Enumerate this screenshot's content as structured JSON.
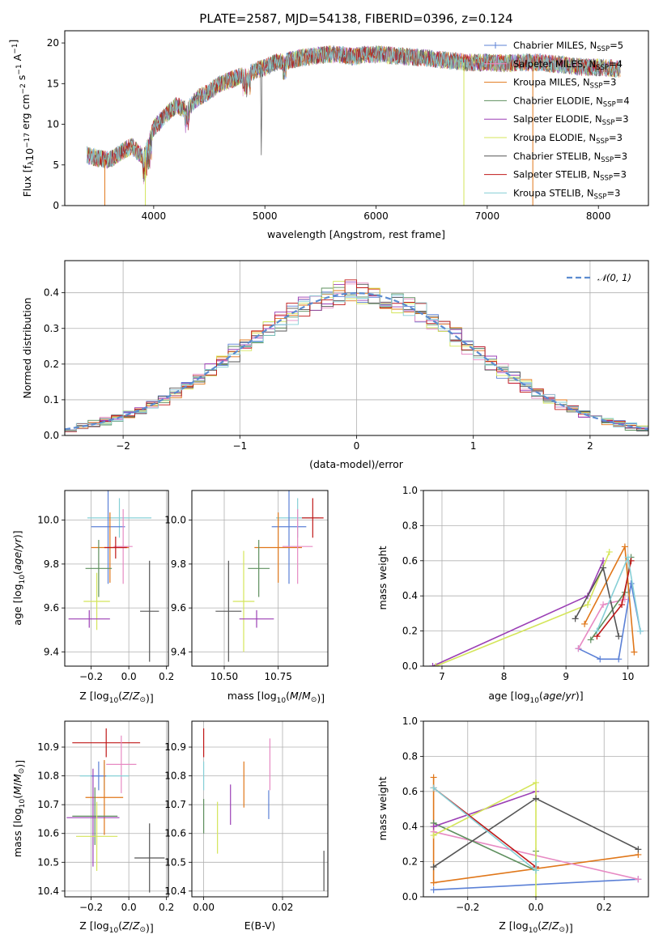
{
  "colors": {
    "chabrier_miles": "#5b80d6",
    "salpeter_miles": "#e78ac3",
    "kroupa_miles": "#e0771a",
    "chabrier_elodie": "#5e8f5e",
    "salpeter_elodie": "#9b3fb5",
    "kroupa_elodie": "#d4e55a",
    "chabrier_stelib": "#555555",
    "salpeter_stelib": "#c01818",
    "kroupa_stelib": "#86cfd6",
    "normal": "#5b8bd0"
  },
  "chart_data": [
    {
      "id": "spectrum",
      "type": "line",
      "title": "PLATE=2587, MJD=54138, FIBERID=0396, z=0.124",
      "xlabel": "wavelength [Angstrom, rest frame]",
      "ylabel": "Flux [f_λ 10^-17 erg cm^-2 s^-1 A^-1]",
      "ylabel_parts": {
        "a": "Flux [f",
        "b": "λ",
        "c": "10",
        "d": "−17",
        "e": " erg cm",
        "f": "−2",
        "g": " s",
        "h": "−1",
        "i": " A",
        "j": "−1",
        "k": "]"
      },
      "xlim": [
        3200,
        8450
      ],
      "ylim": [
        0,
        21.5
      ],
      "xticks": [
        4000,
        5000,
        6000,
        7000,
        8000
      ],
      "yticks": [
        0,
        5,
        10,
        15,
        20
      ],
      "envelope": {
        "x": [
          3400,
          3500,
          3600,
          3700,
          3800,
          3900,
          4000,
          4100,
          4200,
          4300,
          4400,
          4500,
          4600,
          4700,
          4800,
          4900,
          5000,
          5100,
          5200,
          5300,
          5400,
          5500,
          5600,
          5700,
          5800,
          5900,
          6000,
          6100,
          6200,
          6300,
          6400,
          6500,
          6600,
          6700,
          6800,
          6900,
          7000,
          7100,
          7200,
          7300,
          7400,
          7500,
          7600,
          7700,
          7800,
          7900,
          8000,
          8100,
          8200
        ],
        "y": [
          6.2,
          5.8,
          5.6,
          6.5,
          7.3,
          6.0,
          9.5,
          11.0,
          12.3,
          11.8,
          13.3,
          14.0,
          15.0,
          15.5,
          16.0,
          16.5,
          17.0,
          17.6,
          17.8,
          18.1,
          18.3,
          18.5,
          18.6,
          18.5,
          18.3,
          18.6,
          18.6,
          18.5,
          18.4,
          18.3,
          18.2,
          18.1,
          17.9,
          17.8,
          17.6,
          17.6,
          17.6,
          17.5,
          17.5,
          17.6,
          17.6,
          17.6,
          17.4,
          17.3,
          17.1,
          17.0,
          17.0,
          16.9,
          16.8
        ]
      },
      "dips": [
        {
          "x": 3560,
          "y": 0
        },
        {
          "x": 3925,
          "y": 0
        },
        {
          "x": 6790,
          "y": 0
        },
        {
          "x": 7410,
          "y": 0
        }
      ],
      "legend": [
        {
          "key": "chabrier_miles",
          "label": "Chabrier MILES, N",
          "sub": "SSP",
          "suffix": "=5",
          "marker": "+"
        },
        {
          "key": "salpeter_miles",
          "label": "Salpeter MILES, N",
          "sub": "SSP",
          "suffix": "=4",
          "marker": "+"
        },
        {
          "key": "kroupa_miles",
          "label": "Kroupa MILES, N",
          "sub": "SSP",
          "suffix": "=3",
          "marker": ""
        },
        {
          "key": "chabrier_elodie",
          "label": "Chabrier ELODIE, N",
          "sub": "SSP",
          "suffix": "=4",
          "marker": ""
        },
        {
          "key": "salpeter_elodie",
          "label": "Salpeter ELODIE, N",
          "sub": "SSP",
          "suffix": "=3",
          "marker": ""
        },
        {
          "key": "kroupa_elodie",
          "label": "Kroupa ELODIE, N",
          "sub": "SSP",
          "suffix": "=3",
          "marker": ""
        },
        {
          "key": "chabrier_stelib",
          "label": "Chabrier STELIB, N",
          "sub": "SSP",
          "suffix": "=3",
          "marker": ""
        },
        {
          "key": "salpeter_stelib",
          "label": "Salpeter STELIB, N",
          "sub": "SSP",
          "suffix": "=3",
          "marker": ""
        },
        {
          "key": "kroupa_stelib",
          "label": "Kroupa STELIB, N",
          "sub": "SSP",
          "suffix": "=3",
          "marker": ""
        }
      ],
      "legend_placement": "upper-right"
    },
    {
      "id": "residuals",
      "type": "line",
      "xlabel": "(data-model)/error",
      "ylabel": "Normed distribution",
      "xlim": [
        -2.5,
        2.5
      ],
      "ylim": [
        0,
        0.49
      ],
      "xticks": [
        -2,
        -1,
        0,
        1,
        2
      ],
      "xtick_labels": [
        "−2",
        "−1",
        "0",
        "1",
        "2"
      ],
      "yticks": [
        0,
        0.1,
        0.2,
        0.3,
        0.4
      ],
      "ytick_labels": [
        "0.0",
        "0.1",
        "0.2",
        "0.3",
        "0.4"
      ],
      "grid": true,
      "bin_width": 0.1,
      "normal_label": "𝒩(0, 1)",
      "legend_placement": "upper-right"
    },
    {
      "id": "age_vs_Z",
      "type": "scatter",
      "xlabel": "Z [log10(Z/Z⊙)]",
      "ylabel": "age [log10(age/yr)]",
      "xlim": [
        -0.34,
        0.21
      ],
      "ylim": [
        9.335,
        10.135
      ],
      "xticks": [
        -0.2,
        0,
        0.2
      ],
      "xtick_labels": [
        "−0.2",
        "0.0",
        "0.2"
      ],
      "yticks": [
        9.4,
        9.6,
        9.8,
        10.0
      ],
      "ytick_labels": [
        "9.4",
        "9.6",
        "9.8",
        "10.0"
      ],
      "grid": true,
      "points": [
        {
          "key": "kroupa_stelib",
          "x": -0.05,
          "xerr": 0.17,
          "y": 10.01,
          "yerr": 0.09
        },
        {
          "key": "chabrier_miles",
          "x": -0.11,
          "xerr": 0.09,
          "y": 9.97,
          "yerr": 0.26
        },
        {
          "key": "kroupa_miles",
          "x": -0.1,
          "xerr": 0.1,
          "y": 9.875,
          "yerr": 0.16
        },
        {
          "key": "salpeter_miles",
          "x": -0.03,
          "xerr": 0.05,
          "y": 9.88,
          "yerr": 0.17
        },
        {
          "key": "chabrier_elodie",
          "x": -0.16,
          "xerr": 0.07,
          "y": 9.78,
          "yerr": 0.13
        },
        {
          "key": "kroupa_elodie",
          "x": -0.17,
          "xerr": 0.07,
          "y": 9.63,
          "yerr": 0.13
        },
        {
          "key": "salpeter_elodie",
          "x": -0.21,
          "xerr": 0.11,
          "y": 9.55,
          "yerr": 0.04
        },
        {
          "key": "chabrier_stelib",
          "x": 0.11,
          "xerr": 0.05,
          "y": 9.585,
          "yerr": 0.23
        },
        {
          "key": "salpeter_stelib",
          "x": -0.07,
          "xerr": 0.06,
          "y": 9.875,
          "yerr": 0.05
        }
      ]
    },
    {
      "id": "age_vs_mass",
      "type": "scatter",
      "xlabel": "mass [log10(M/M⊙)]",
      "xlim": [
        10.35,
        10.98
      ],
      "ylim": [
        9.335,
        10.135
      ],
      "xticks": [
        10.5,
        10.75
      ],
      "xtick_labels": [
        "10.50",
        "10.75"
      ],
      "yticks": [
        9.4,
        9.6,
        9.8,
        10.0
      ],
      "ytick_labels": [
        "9.4",
        "9.6",
        "9.8",
        "10.0"
      ],
      "grid": true,
      "points": [
        {
          "key": "kroupa_stelib",
          "x": 10.84,
          "xerr": 0.1,
          "y": 10.01,
          "yerr": 0.09
        },
        {
          "key": "chabrier_miles",
          "x": 10.8,
          "xerr": 0.08,
          "y": 9.97,
          "yerr": 0.26
        },
        {
          "key": "kroupa_miles",
          "x": 10.75,
          "xerr": 0.11,
          "y": 9.875,
          "yerr": 0.16
        },
        {
          "key": "salpeter_miles",
          "x": 10.84,
          "xerr": 0.07,
          "y": 9.88,
          "yerr": 0.17
        },
        {
          "key": "chabrier_elodie",
          "x": 10.66,
          "xerr": 0.05,
          "y": 9.78,
          "yerr": 0.13
        },
        {
          "key": "kroupa_elodie",
          "x": 10.59,
          "xerr": 0.05,
          "y": 9.63,
          "yerr": 0.23
        },
        {
          "key": "salpeter_elodie",
          "x": 10.65,
          "xerr": 0.08,
          "y": 9.55,
          "yerr": 0.04
        },
        {
          "key": "chabrier_stelib",
          "x": 10.52,
          "xerr": 0.06,
          "y": 9.585,
          "yerr": 0.23
        },
        {
          "key": "salpeter_stelib",
          "x": 10.91,
          "xerr": 0.05,
          "y": 10.01,
          "yerr": 0.09
        }
      ]
    },
    {
      "id": "weight_vs_age",
      "type": "line",
      "xlabel": "age [log10(age/yr)]",
      "ylabel": "mass weight",
      "xlim": [
        6.7,
        10.33
      ],
      "ylim": [
        0,
        1
      ],
      "xticks": [
        7,
        8,
        9,
        10
      ],
      "xtick_labels": [
        "7",
        "8",
        "9",
        "10"
      ],
      "yticks": [
        0,
        0.2,
        0.4,
        0.6,
        0.8,
        1.0
      ],
      "ytick_labels": [
        "0.0",
        "0.2",
        "0.4",
        "0.6",
        "0.8",
        "1.0"
      ],
      "grid": true,
      "series": [
        {
          "key": "chabrier_miles",
          "x": [
            9.2,
            9.55,
            9.85,
            10.05,
            10.2
          ],
          "y": [
            0.1,
            0.04,
            0.04,
            0.47,
            0.2
          ]
        },
        {
          "key": "salpeter_miles",
          "x": [
            9.2,
            9.6,
            9.95
          ],
          "y": [
            0.1,
            0.35,
            0.38
          ]
        },
        {
          "key": "kroupa_miles",
          "x": [
            9.3,
            9.95,
            10.1
          ],
          "y": [
            0.24,
            0.68,
            0.08
          ]
        },
        {
          "key": "chabrier_elodie",
          "x": [
            9.4,
            9.95,
            10.05
          ],
          "y": [
            0.15,
            0.42,
            0.62
          ]
        },
        {
          "key": "salpeter_elodie",
          "x": [
            6.85,
            9.35,
            9.6
          ],
          "y": [
            0.0,
            0.4,
            0.6
          ]
        },
        {
          "key": "kroupa_elodie",
          "x": [
            6.9,
            9.35,
            9.7
          ],
          "y": [
            0.0,
            0.35,
            0.65
          ]
        },
        {
          "key": "chabrier_stelib",
          "x": [
            9.15,
            9.6,
            9.85
          ],
          "y": [
            0.27,
            0.56,
            0.17
          ]
        },
        {
          "key": "salpeter_stelib",
          "x": [
            9.5,
            9.9,
            10.05
          ],
          "y": [
            0.17,
            0.35,
            0.6
          ]
        },
        {
          "key": "kroupa_stelib",
          "x": [
            9.5,
            10.0,
            10.2
          ],
          "y": [
            0.2,
            0.62,
            0.2
          ]
        }
      ]
    },
    {
      "id": "mass_vs_Z",
      "type": "scatter",
      "xlabel": "Z [log10(Z/Z⊙)]",
      "ylabel": "mass [log10(M/M⊙)]",
      "xlim": [
        -0.34,
        0.21
      ],
      "ylim": [
        10.38,
        10.99
      ],
      "xticks": [
        -0.2,
        0,
        0.2
      ],
      "xtick_labels": [
        "−0.2",
        "0.0",
        "0.2"
      ],
      "yticks": [
        10.4,
        10.5,
        10.6,
        10.7,
        10.8,
        10.9
      ],
      "ytick_labels": [
        "10.4",
        "10.5",
        "10.6",
        "10.7",
        "10.8",
        "10.9"
      ],
      "grid": true,
      "points": [
        {
          "key": "salpeter_stelib",
          "x": -0.12,
          "xerr": 0.18,
          "y": 10.915,
          "yerr": 0.05
        },
        {
          "key": "salpeter_miles",
          "x": -0.04,
          "xerr": 0.08,
          "y": 10.84,
          "yerr": 0.1
        },
        {
          "key": "kroupa_stelib",
          "x": -0.13,
          "xerr": 0.13,
          "y": 10.8,
          "yerr": 0.05
        },
        {
          "key": "chabrier_miles",
          "x": -0.16,
          "xerr": 0.04,
          "y": 10.8,
          "yerr": 0.05
        },
        {
          "key": "kroupa_miles",
          "x": -0.13,
          "xerr": 0.1,
          "y": 10.725,
          "yerr": 0.13
        },
        {
          "key": "chabrier_elodie",
          "x": -0.18,
          "xerr": 0.12,
          "y": 10.66,
          "yerr": 0.1
        },
        {
          "key": "salpeter_elodie",
          "x": -0.19,
          "xerr": 0.14,
          "y": 10.655,
          "yerr": 0.17
        },
        {
          "key": "kroupa_elodie",
          "x": -0.17,
          "xerr": 0.11,
          "y": 10.59,
          "yerr": 0.12
        },
        {
          "key": "chabrier_stelib",
          "x": 0.11,
          "xerr": 0.08,
          "y": 10.515,
          "yerr": 0.12
        }
      ]
    },
    {
      "id": "mass_vs_ebv",
      "type": "scatter",
      "xlabel": "E(B-V)",
      "xlim": [
        -0.003,
        0.0315
      ],
      "ylim": [
        10.38,
        10.99
      ],
      "xticks": [
        0,
        0.02
      ],
      "xtick_labels": [
        "0.00",
        "0.02"
      ],
      "yticks": [
        10.4,
        10.5,
        10.6,
        10.7,
        10.8,
        10.9
      ],
      "ytick_labels": [
        "10.4",
        "10.5",
        "10.6",
        "10.7",
        "10.8",
        "10.9"
      ],
      "grid": true,
      "points": [
        {
          "key": "salpeter_stelib",
          "x": 0.0,
          "xerr": 0,
          "y": 10.915,
          "yerr": 0.05
        },
        {
          "key": "kroupa_stelib",
          "x": 0.0,
          "xerr": 0,
          "y": 10.8,
          "yerr": 0.05
        },
        {
          "key": "chabrier_elodie",
          "x": 0.0,
          "xerr": 0,
          "y": 10.66,
          "yerr": 0.06
        },
        {
          "key": "kroupa_elodie",
          "x": 0.0035,
          "xerr": 0,
          "y": 10.62,
          "yerr": 0.09
        },
        {
          "key": "salpeter_elodie",
          "x": 0.0068,
          "xerr": 0,
          "y": 10.7,
          "yerr": 0.07
        },
        {
          "key": "kroupa_miles",
          "x": 0.0102,
          "xerr": 0,
          "y": 10.77,
          "yerr": 0.08
        },
        {
          "key": "chabrier_miles",
          "x": 0.0165,
          "xerr": 0,
          "y": 10.7,
          "yerr": 0.05
        },
        {
          "key": "salpeter_miles",
          "x": 0.0168,
          "xerr": 0,
          "y": 10.84,
          "yerr": 0.09
        },
        {
          "key": "chabrier_stelib",
          "x": 0.0305,
          "xerr": 0,
          "y": 10.47,
          "yerr": 0.07
        }
      ]
    },
    {
      "id": "weight_vs_Z",
      "type": "line",
      "xlabel": "Z [log10(Z/Z⊙)]",
      "ylabel": "mass weight",
      "xlim": [
        -0.33,
        0.33
      ],
      "ylim": [
        0,
        1
      ],
      "xticks": [
        -0.2,
        0,
        0.2
      ],
      "xtick_labels": [
        "−0.2",
        "0.0",
        "0.2"
      ],
      "yticks": [
        0,
        0.2,
        0.4,
        0.6,
        0.8,
        1.0
      ],
      "ytick_labels": [
        "0.0",
        "0.2",
        "0.4",
        "0.6",
        "0.8",
        "1.0"
      ],
      "grid": true,
      "series": [
        {
          "key": "chabrier_miles",
          "x": [
            -0.3,
            0.3
          ],
          "y": [
            0.04,
            0.1
          ]
        },
        {
          "key": "kroupa_miles",
          "x": [
            -0.3,
            -0.3,
            0.3
          ],
          "y": [
            0.68,
            0.08,
            0.24
          ]
        },
        {
          "key": "salpeter_miles",
          "x": [
            -0.3,
            0.3
          ],
          "y": [
            0.37,
            0.1
          ]
        },
        {
          "key": "chabrier_elodie",
          "x": [
            -0.3,
            0.0,
            0.0
          ],
          "y": [
            0.42,
            0.15,
            0.26
          ]
        },
        {
          "key": "salpeter_elodie",
          "x": [
            -0.3,
            0.0
          ],
          "y": [
            0.4,
            0.6
          ]
        },
        {
          "key": "kroupa_elodie",
          "x": [
            -0.3,
            0.0,
            0.0
          ],
          "y": [
            0.35,
            0.65,
            0.0
          ]
        },
        {
          "key": "chabrier_stelib",
          "x": [
            -0.3,
            0.0,
            0.3
          ],
          "y": [
            0.17,
            0.56,
            0.27
          ]
        },
        {
          "key": "salpeter_stelib",
          "x": [
            -0.3,
            0.0
          ],
          "y": [
            0.62,
            0.17
          ]
        },
        {
          "key": "kroupa_stelib",
          "x": [
            -0.3,
            0.0,
            0.0
          ],
          "y": [
            0.62,
            0.15,
            0.2
          ]
        }
      ]
    }
  ]
}
